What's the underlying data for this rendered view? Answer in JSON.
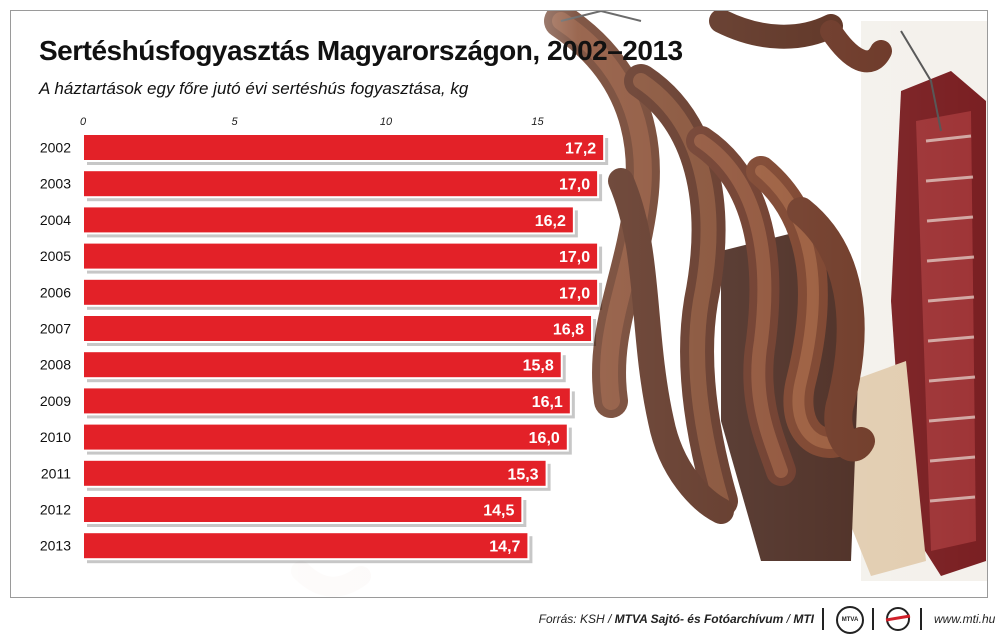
{
  "title": "Sertéshúsfogyasztás Magyarországon, 2002–2013",
  "subtitle": "A háztartások egy főre jutó évi sertéshús fogyasztása, kg",
  "footer": {
    "source_prefix": "Forrás: KSH / ",
    "source_org": "MTVA Sajtó- és Fotóarchívum",
    "source_sep": " / ",
    "source_mti": "MTI",
    "website": "www.mti.hu",
    "mtva_logo_text": "MTVA"
  },
  "colors": {
    "bar": "#e32128",
    "bar_outline": "#ffffff",
    "value_text": "#ffffff"
  },
  "chart_data": {
    "type": "bar",
    "orientation": "horizontal",
    "categories": [
      "2002",
      "2003",
      "2004",
      "2005",
      "2006",
      "2007",
      "2008",
      "2009",
      "2010",
      "2011",
      "2012",
      "2013"
    ],
    "values": [
      17.2,
      17.0,
      16.2,
      17.0,
      17.0,
      16.8,
      15.8,
      16.1,
      16.0,
      15.3,
      14.5,
      14.7
    ],
    "value_labels": [
      "17,2",
      "17,0",
      "16,2",
      "17,0",
      "17,0",
      "16,8",
      "15,8",
      "16,1",
      "16,0",
      "15,3",
      "14,5",
      "14,7"
    ],
    "ticks": [
      0,
      5,
      10,
      15
    ],
    "tick_labels": [
      "0",
      "5",
      "10",
      "15"
    ],
    "xlim": [
      0,
      17.2
    ],
    "axis_position": "top",
    "grid": false,
    "legend": "none"
  }
}
